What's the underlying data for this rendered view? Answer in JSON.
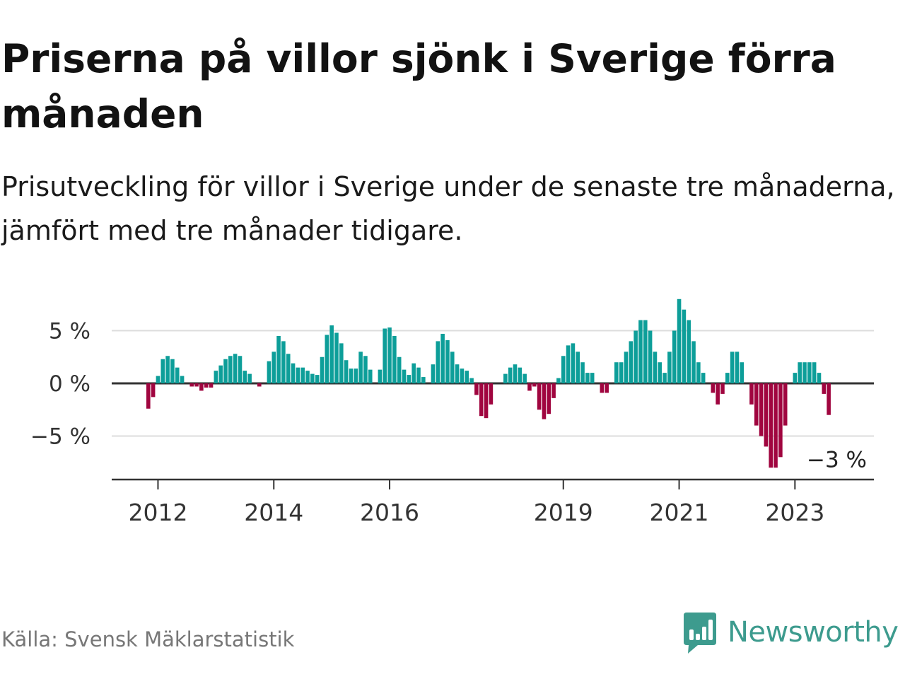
{
  "header": {
    "title": "Priserna på villor sjönk i Sverige förra månaden",
    "subtitle": "Prisutveckling för villor i Sverige under de senaste tre månaderna, jämfört med tre månader tidigare."
  },
  "footer": {
    "source": "Källa: Svensk Mäklarstatistik",
    "brand": "Newsworthy"
  },
  "colors": {
    "positive": "#0d9e99",
    "negative": "#a0053f",
    "brand": "#3d9b8e"
  },
  "chart_data": {
    "type": "bar",
    "start": "2011-11",
    "unit": "%",
    "ylim": [
      -9,
      9
    ],
    "yticks": [
      5,
      0,
      -5
    ],
    "ytick_labels": [
      "5 %",
      "0 %",
      "−5 %"
    ],
    "xtick_labels": [
      "2012",
      "2014",
      "2016",
      "2019",
      "2021",
      "2023"
    ],
    "last_label": "−3 %",
    "values": [
      -2.4,
      -1.3,
      0.7,
      2.3,
      2.6,
      2.3,
      1.5,
      0.7,
      0,
      -0.3,
      -0.3,
      -0.7,
      -0.4,
      -0.4,
      1.2,
      1.7,
      2.3,
      2.6,
      2.8,
      2.6,
      1.2,
      0.9,
      0,
      -0.3,
      0,
      2.1,
      3.0,
      4.5,
      4.0,
      2.8,
      1.9,
      1.5,
      1.5,
      1.2,
      0.9,
      0.8,
      2.5,
      4.6,
      5.5,
      4.8,
      3.8,
      2.2,
      1.4,
      1.4,
      3.0,
      2.6,
      1.3,
      0,
      1.3,
      5.2,
      5.3,
      4.5,
      2.5,
      1.3,
      0.8,
      1.9,
      1.5,
      0.6,
      0,
      1.8,
      4.0,
      4.7,
      4.1,
      3.0,
      1.8,
      1.4,
      1.2,
      0.5,
      -1.1,
      -3.1,
      -3.3,
      -2.0,
      0,
      0,
      0.9,
      1.5,
      1.8,
      1.5,
      0.9,
      -0.7,
      -0.3,
      -2.5,
      -3.4,
      -2.9,
      -1.4,
      0.5,
      2.6,
      3.6,
      3.8,
      3.0,
      2.0,
      1.0,
      1.0,
      0,
      -0.9,
      -0.9,
      0,
      2.0,
      2.0,
      3.0,
      4.0,
      5.0,
      6.0,
      6.0,
      5.0,
      3.0,
      2.0,
      1.0,
      3.0,
      5.0,
      8.0,
      7.0,
      6.0,
      4.0,
      2.0,
      1.0,
      0,
      -0.9,
      -2.0,
      -1.0,
      1.0,
      3.0,
      3.0,
      2.0,
      0,
      -2.0,
      -4.0,
      -5.0,
      -6.0,
      -8.0,
      -8.0,
      -7.0,
      -4.0,
      0,
      1.0,
      2.0,
      2.0,
      2.0,
      2.0,
      1.0,
      -1.0,
      -3.0
    ]
  }
}
